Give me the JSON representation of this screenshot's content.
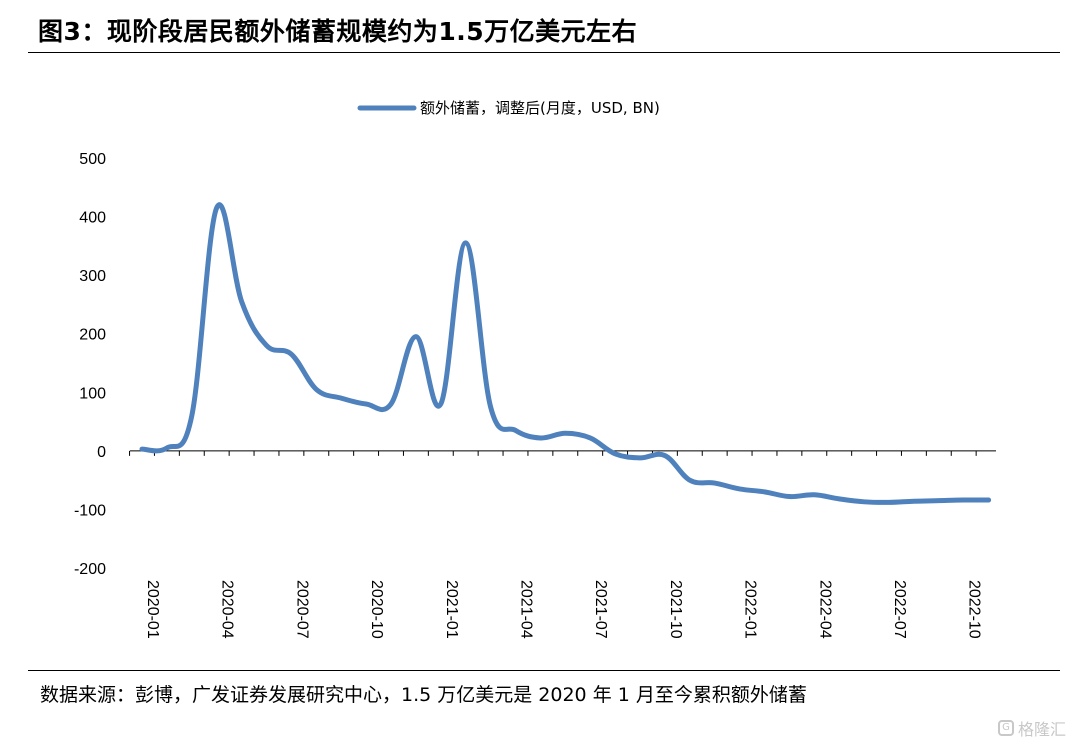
{
  "header": {
    "title": "图3：现阶段居民额外储蓄规模约为1.5万亿美元左右"
  },
  "footer": {
    "source": "数据来源：彭博，广发证券发展研究中心，1.5 万亿美元是 2020 年 1 月至今累积额外储蓄",
    "watermark": "格隆汇"
  },
  "chart_data": {
    "type": "line",
    "title": "",
    "xlabel": "",
    "ylabel": "",
    "ylim": [
      -200,
      500
    ],
    "yticks": [
      "500",
      "400",
      "300",
      "200",
      "100",
      "0",
      "-100",
      "-200"
    ],
    "xticks": [
      "2020-01",
      "2020-04",
      "2020-07",
      "2020-10",
      "2021-01",
      "2021-04",
      "2021-07",
      "2021-10",
      "2022-01",
      "2022-04",
      "2022-07",
      "2022-10"
    ],
    "grid": false,
    "legend_position": "top-center",
    "colors": {
      "series": "#4F81BD"
    },
    "series": [
      {
        "name": "额外储蓄，调整后(月度，USD, BN)",
        "x": [
          "2020-01",
          "2020-02",
          "2020-03",
          "2020-04",
          "2020-05",
          "2020-06",
          "2020-07",
          "2020-08",
          "2020-09",
          "2020-10",
          "2020-11",
          "2020-12",
          "2021-01",
          "2021-02",
          "2021-03",
          "2021-04",
          "2021-05",
          "2021-06",
          "2021-07",
          "2021-08",
          "2021-09",
          "2021-10",
          "2021-11",
          "2021-12",
          "2022-01",
          "2022-02",
          "2022-03",
          "2022-04",
          "2022-05",
          "2022-06",
          "2022-07",
          "2022-08",
          "2022-09",
          "2022-10",
          "2022-11"
        ],
        "values": [
          3,
          5,
          60,
          415,
          255,
          180,
          165,
          105,
          90,
          80,
          80,
          195,
          80,
          355,
          75,
          35,
          22,
          30,
          22,
          -5,
          -12,
          -8,
          -50,
          -55,
          -65,
          -70,
          -78,
          -75,
          -82,
          -87,
          -88,
          -86,
          -85,
          -84,
          -84
        ]
      }
    ]
  }
}
